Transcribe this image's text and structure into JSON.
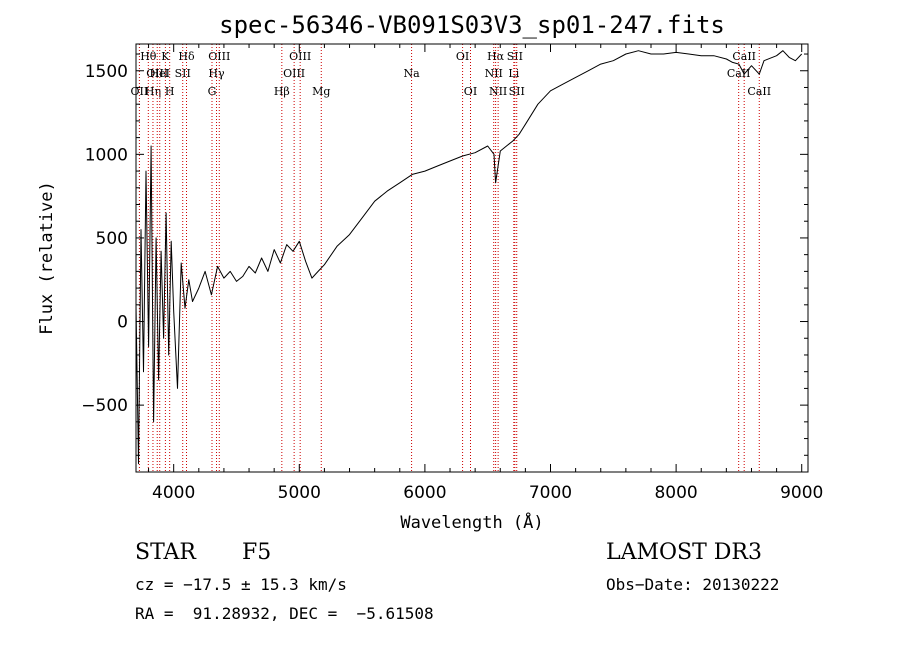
{
  "chart_data": {
    "type": "line",
    "title": "spec-56346-VB091S03V3_sp01-247.fits",
    "xlabel": "Wavelength (Å)",
    "ylabel": "Flux (relative)",
    "xlim": [
      3700,
      9050
    ],
    "ylim": [
      -900,
      1660
    ],
    "x_ticks": [
      4000,
      5000,
      6000,
      7000,
      8000,
      9000
    ],
    "y_ticks": [
      -500,
      0,
      500,
      1000,
      1500
    ],
    "x_tick_labels": [
      "4000",
      "5000",
      "6000",
      "7000",
      "8000",
      "9000"
    ],
    "y_tick_labels": [
      "−500",
      "0",
      "500",
      "1000",
      "1500"
    ],
    "series": [
      {
        "name": "spectrum",
        "x": [
          3700,
          3720,
          3740,
          3760,
          3780,
          3800,
          3820,
          3840,
          3860,
          3880,
          3900,
          3920,
          3940,
          3960,
          3980,
          4000,
          4030,
          4060,
          4090,
          4120,
          4150,
          4200,
          4250,
          4300,
          4350,
          4400,
          4450,
          4500,
          4550,
          4600,
          4650,
          4700,
          4750,
          4800,
          4850,
          4900,
          4950,
          5000,
          5050,
          5100,
          5150,
          5200,
          5300,
          5400,
          5500,
          5600,
          5700,
          5800,
          5900,
          6000,
          6100,
          6200,
          6300,
          6400,
          6500,
          6550,
          6563,
          6600,
          6650,
          6700,
          6750,
          6800,
          6900,
          7000,
          7100,
          7200,
          7300,
          7400,
          7500,
          7600,
          7700,
          7800,
          7900,
          8000,
          8100,
          8200,
          8300,
          8400,
          8450,
          8500,
          8542,
          8600,
          8662,
          8700,
          8800,
          8850,
          8900,
          8950,
          9000
        ],
        "values": [
          100,
          -850,
          550,
          -300,
          900,
          -150,
          1050,
          -600,
          500,
          -350,
          420,
          -100,
          650,
          -200,
          480,
          60,
          -400,
          350,
          80,
          250,
          120,
          200,
          300,
          160,
          330,
          260,
          300,
          240,
          270,
          330,
          290,
          380,
          300,
          430,
          350,
          460,
          420,
          480,
          360,
          260,
          300,
          340,
          450,
          520,
          620,
          720,
          780,
          830,
          880,
          900,
          930,
          960,
          990,
          1010,
          1050,
          1000,
          830,
          1020,
          1050,
          1080,
          1120,
          1180,
          1300,
          1380,
          1420,
          1460,
          1500,
          1540,
          1560,
          1600,
          1620,
          1600,
          1600,
          1610,
          1600,
          1590,
          1590,
          1570,
          1550,
          1540,
          1480,
          1530,
          1480,
          1560,
          1590,
          1620,
          1580,
          1560,
          1600
        ]
      }
    ],
    "line_markers": [
      {
        "label": "Hθ",
        "x": 3798,
        "row": 1
      },
      {
        "label": "OII",
        "x": 3727,
        "row": 3
      },
      {
        "label": "Hη",
        "x": 3835,
        "row": 3
      },
      {
        "label": "HeI",
        "x": 3889,
        "row": 2
      },
      {
        "label": "OIII",
        "x": 3869,
        "row": 2
      },
      {
        "label": "K",
        "x": 3934,
        "row": 1
      },
      {
        "label": "H",
        "x": 3968,
        "row": 3
      },
      {
        "label": "Hδ",
        "x": 4102,
        "row": 1
      },
      {
        "label": "SII",
        "x": 4072,
        "row": 2
      },
      {
        "label": "OIII",
        "x": 4363,
        "row": 1
      },
      {
        "label": "Hγ",
        "x": 4341,
        "row": 2
      },
      {
        "label": "G",
        "x": 4305,
        "row": 3
      },
      {
        "label": "Hβ",
        "x": 4861,
        "row": 3
      },
      {
        "label": "OIII",
        "x": 5007,
        "row": 1
      },
      {
        "label": "OIII",
        "x": 4959,
        "row": 2
      },
      {
        "label": "Mg",
        "x": 5175,
        "row": 3
      },
      {
        "label": "Na",
        "x": 5894,
        "row": 2
      },
      {
        "label": "OI",
        "x": 6300,
        "row": 1
      },
      {
        "label": "OI",
        "x": 6363,
        "row": 3
      },
      {
        "label": "Hα",
        "x": 6563,
        "row": 1
      },
      {
        "label": "NII",
        "x": 6548,
        "row": 2
      },
      {
        "label": "NII",
        "x": 6583,
        "row": 3
      },
      {
        "label": "SII",
        "x": 6716,
        "row": 1
      },
      {
        "label": "Li",
        "x": 6708,
        "row": 2
      },
      {
        "label": "SII",
        "x": 6731,
        "row": 3
      },
      {
        "label": "CaII",
        "x": 8542,
        "row": 1
      },
      {
        "label": "CaII",
        "x": 8498,
        "row": 2
      },
      {
        "label": "CaII",
        "x": 8662,
        "row": 3
      }
    ]
  },
  "info": {
    "object_class": "STAR",
    "subclass": "F5",
    "survey": "LAMOST DR3",
    "redshift": "cz = −17.5 ± 15.3 km/s",
    "obs_date": "Obs−Date: 20130222",
    "coords": "RA =  91.28932, DEC =  −5.61508"
  },
  "colors": {
    "line": "#000000",
    "marker": "#cc0000",
    "axis": "#000000"
  }
}
